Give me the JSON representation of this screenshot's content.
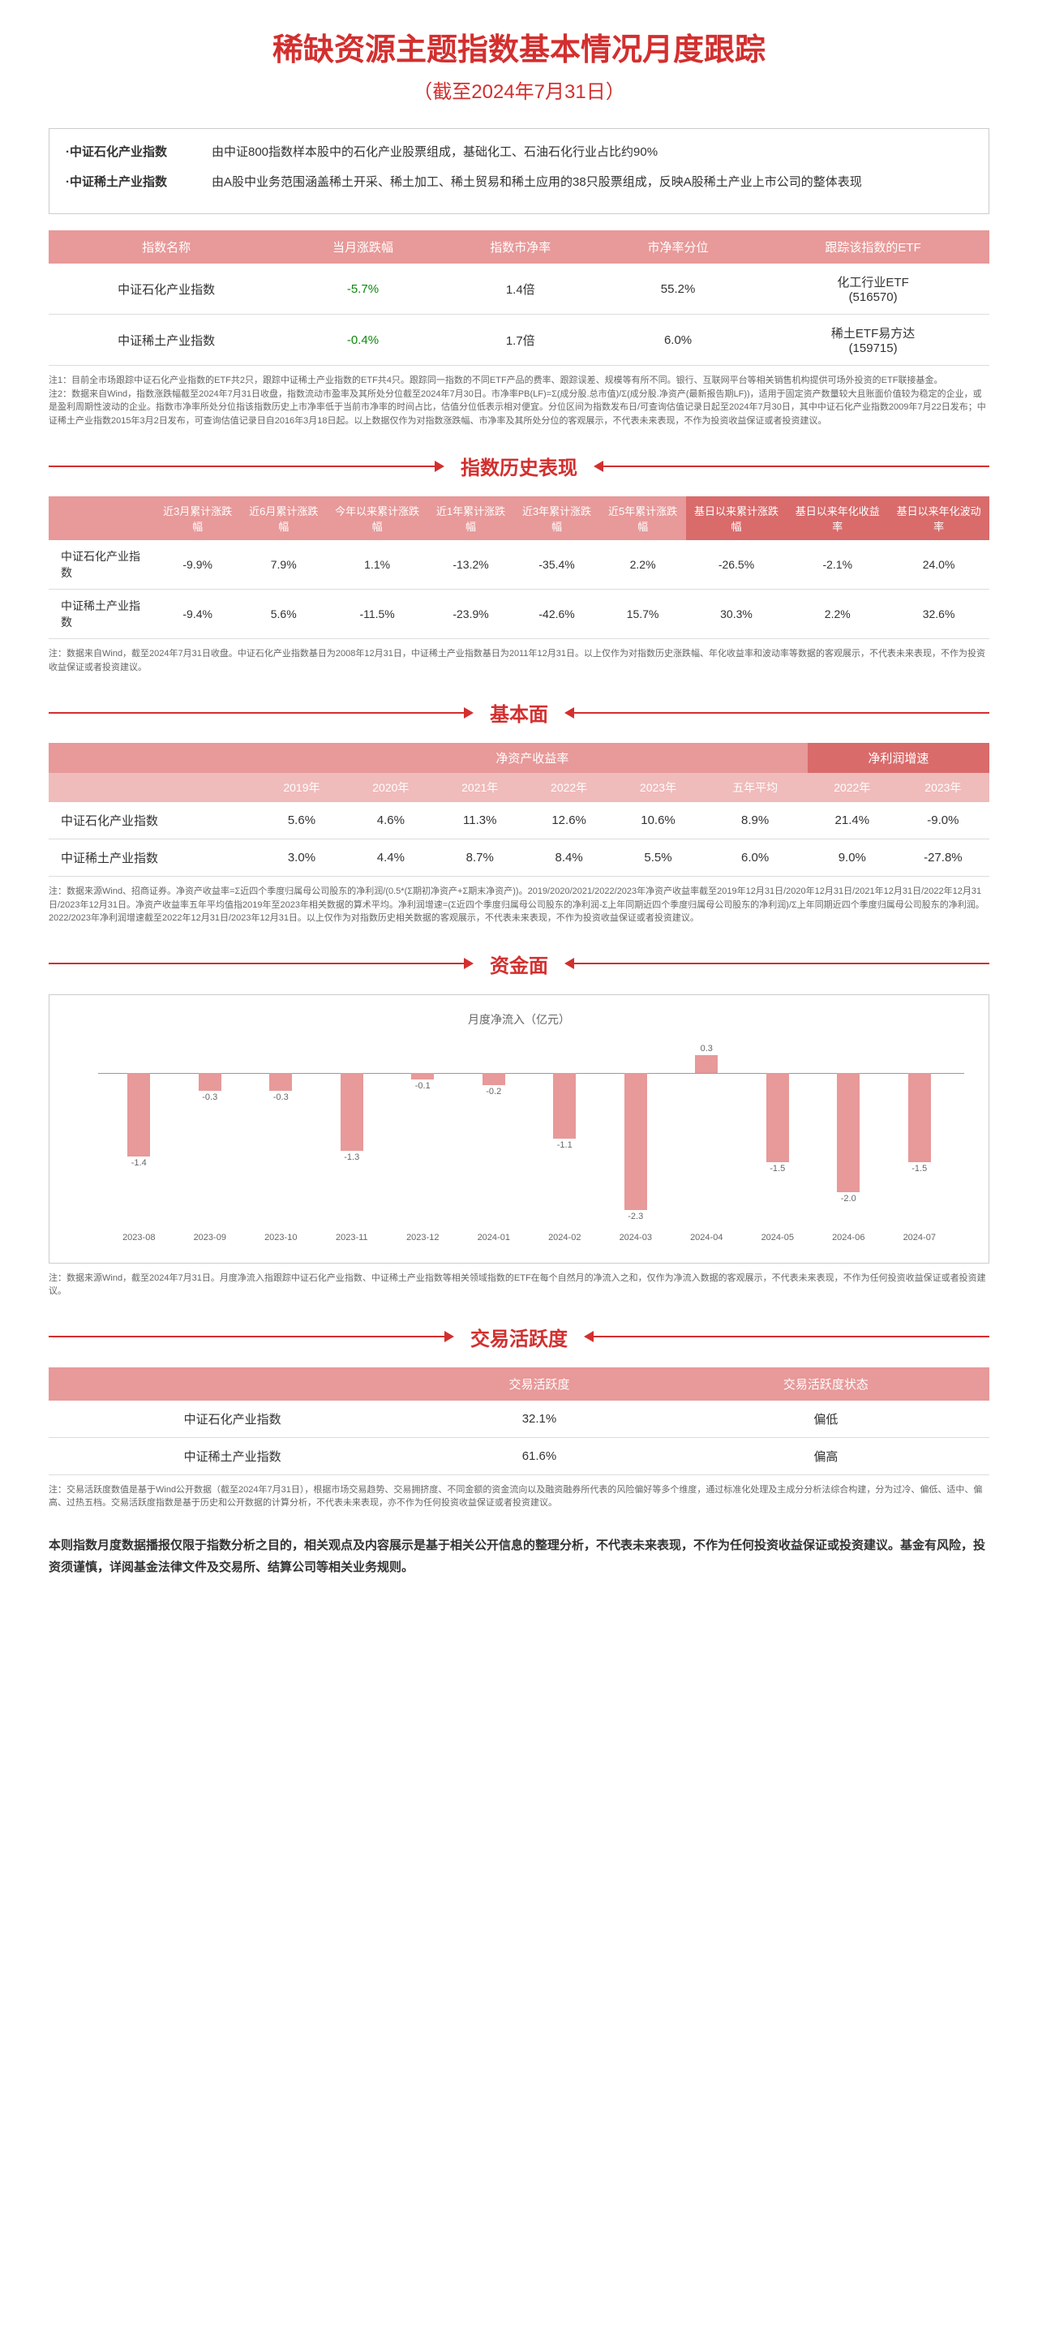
{
  "header": {
    "main_title": "稀缺资源主题指数基本情况月度跟踪",
    "sub_title": "（截至2024年7月31日）"
  },
  "intro": {
    "rows": [
      {
        "label": "·中证石化产业指数",
        "text": "由中证800指数样本股中的石化产业股票组成，基础化工、石油石化行业占比约90%"
      },
      {
        "label": "·中证稀土产业指数",
        "text": "由A股中业务范围涵盖稀土开采、稀土加工、稀土贸易和稀土应用的38只股票组成，反映A股稀土产业上市公司的整体表现"
      }
    ]
  },
  "overview_table": {
    "headers": [
      "指数名称",
      "当月涨跌幅",
      "指数市净率",
      "市净率分位",
      "跟踪该指数的ETF"
    ],
    "rows": [
      {
        "name": "中证石化产业指数",
        "change": "-5.7%",
        "change_class": "green",
        "pb": "1.4倍",
        "pb_pct": "55.2%",
        "etf": "化工行业ETF\n(516570)"
      },
      {
        "name": "中证稀土产业指数",
        "change": "-0.4%",
        "change_class": "green",
        "pb": "1.7倍",
        "pb_pct": "6.0%",
        "etf": "稀土ETF易方达\n(159715)"
      }
    ],
    "note": "注1：目前全市场跟踪中证石化产业指数的ETF共2只，跟踪中证稀土产业指数的ETF共4只。跟踪同一指数的不同ETF产品的费率、跟踪误差、规模等有所不同。银行、互联网平台等相关销售机构提供可场外投资的ETF联接基金。\n注2：数据来自Wind，指数涨跌幅截至2024年7月31日收盘，指数流动市盈率及其所处分位截至2024年7月30日。市净率PB(LF)=Σ(成分股.总市值)/Σ(成分股.净资产(最新报告期LF))，适用于固定资产数量较大且账面价值较为稳定的企业，或是盈利周期性波动的企业。指数市净率所处分位指该指数历史上市净率低于当前市净率的时间占比，估值分位低表示相对便宜。分位区间为指数发布日/可查询估值记录日起至2024年7月30日，其中中证石化产业指数2009年7月22日发布；中证稀土产业指数2015年3月2日发布，可查询估值记录日自2016年3月18日起。以上数据仅作为对指数涨跌幅、市净率及其所处分位的客观展示，不代表未来表现，不作为投资收益保证或者投资建议。"
  },
  "sections": {
    "performance": "指数历史表现",
    "fundamental": "基本面",
    "capital": "资金面",
    "activity": "交易活跃度"
  },
  "performance_table": {
    "headers": [
      "",
      "近3月累计涨跌幅",
      "近6月累计涨跌幅",
      "今年以来累计涨跌幅",
      "近1年累计涨跌幅",
      "近3年累计涨跌幅",
      "近5年累计涨跌幅",
      "基日以来累计涨跌幅",
      "基日以来年化收益率",
      "基日以来年化波动率"
    ],
    "accent_cols": [
      7,
      8,
      9
    ],
    "rows": [
      {
        "name": "中证石化产业指数",
        "vals": [
          "-9.9%",
          "7.9%",
          "1.1%",
          "-13.2%",
          "-35.4%",
          "2.2%",
          "-26.5%",
          "-2.1%",
          "24.0%"
        ]
      },
      {
        "name": "中证稀土产业指数",
        "vals": [
          "-9.4%",
          "5.6%",
          "-11.5%",
          "-23.9%",
          "-42.6%",
          "15.7%",
          "30.3%",
          "2.2%",
          "32.6%"
        ]
      }
    ],
    "note": "注：数据来自Wind，截至2024年7月31日收盘。中证石化产业指数基日为2008年12月31日，中证稀土产业指数基日为2011年12月31日。以上仅作为对指数历史涨跌幅、年化收益率和波动率等数据的客观展示，不代表未来表现，不作为投资收益保证或者投资建议。"
  },
  "fundamental_table": {
    "group_headers": [
      {
        "label": "",
        "span": 1
      },
      {
        "label": "净资产收益率",
        "span": 6
      },
      {
        "label": "净利润增速",
        "span": 2,
        "accent": true
      }
    ],
    "year_headers": [
      "",
      "2019年",
      "2020年",
      "2021年",
      "2022年",
      "2023年",
      "五年平均",
      "2022年",
      "2023年"
    ],
    "rows": [
      {
        "name": "中证石化产业指数",
        "vals": [
          "5.6%",
          "4.6%",
          "11.3%",
          "12.6%",
          "10.6%",
          "8.9%",
          "21.4%",
          "-9.0%"
        ]
      },
      {
        "name": "中证稀土产业指数",
        "vals": [
          "3.0%",
          "4.4%",
          "8.7%",
          "8.4%",
          "5.5%",
          "6.0%",
          "9.0%",
          "-27.8%"
        ]
      }
    ],
    "note": "注：数据来源Wind、招商证券。净资产收益率=Σ近四个季度归属母公司股东的净利润/(0.5*(Σ期初净资产+Σ期末净资产))。2019/2020/2021/2022/2023年净资产收益率截至2019年12月31日/2020年12月31日/2021年12月31日/2022年12月31日/2023年12月31日。净资产收益率五年平均值指2019年至2023年相关数据的算术平均。净利润增速=(Σ近四个季度归属母公司股东的净利润-Σ上年同期近四个季度归属母公司股东的净利润)/Σ上年同期近四个季度归属母公司股东的净利润。2022/2023年净利润增速截至2022年12月31日/2023年12月31日。以上仅作为对指数历史相关数据的客观展示，不代表未来表现，不作为投资收益保证或者投资建议。"
  },
  "capital_chart": {
    "title": "月度净流入（亿元）",
    "bar_color": "#e89999",
    "y_min": -2.5,
    "y_max": 0.5,
    "zero_ratio": 0.167,
    "data": [
      {
        "label": "2023-08",
        "value": -1.4
      },
      {
        "label": "2023-09",
        "value": -0.3
      },
      {
        "label": "2023-10",
        "value": -0.3
      },
      {
        "label": "2023-11",
        "value": -1.3
      },
      {
        "label": "2023-12",
        "value": -0.1
      },
      {
        "label": "2024-01",
        "value": -0.2
      },
      {
        "label": "2024-02",
        "value": -1.1
      },
      {
        "label": "2024-03",
        "value": -2.3
      },
      {
        "label": "2024-04",
        "value": 0.3
      },
      {
        "label": "2024-05",
        "value": -1.5
      },
      {
        "label": "2024-06",
        "value": -2.0
      },
      {
        "label": "2024-07",
        "value": -1.5
      }
    ],
    "note": "注：数据来源Wind，截至2024年7月31日。月度净流入指跟踪中证石化产业指数、中证稀土产业指数等相关领域指数的ETF在每个自然月的净流入之和，仅作为净流入数据的客观展示，不代表未来表现，不作为任何投资收益保证或者投资建议。"
  },
  "activity_table": {
    "headers": [
      "",
      "交易活跃度",
      "交易活跃度状态"
    ],
    "rows": [
      {
        "name": "中证石化产业指数",
        "val": "32.1%",
        "status": "偏低"
      },
      {
        "name": "中证稀土产业指数",
        "val": "61.6%",
        "status": "偏高"
      }
    ],
    "note": "注：交易活跃度数值是基于Wind公开数据（截至2024年7月31日），根据市场交易趋势、交易拥挤度、不同金额的资金流向以及融资融券所代表的风险偏好等多个维度，通过标准化处理及主成分分析法综合构建，分为过冷、偏低、适中、偏高、过热五档。交易活跃度指数是基于历史和公开数据的计算分析，不代表未来表现，亦不作为任何投资收益保证或者投资建议。"
  },
  "disclaimer": "本则指数月度数据播报仅限于指数分析之目的，相关观点及内容展示是基于相关公开信息的整理分析，不代表未来表现，不作为任何投资收益保证或投资建议。基金有风险，投资须谨慎，详阅基金法律文件及交易所、结算公司等相关业务规则。"
}
